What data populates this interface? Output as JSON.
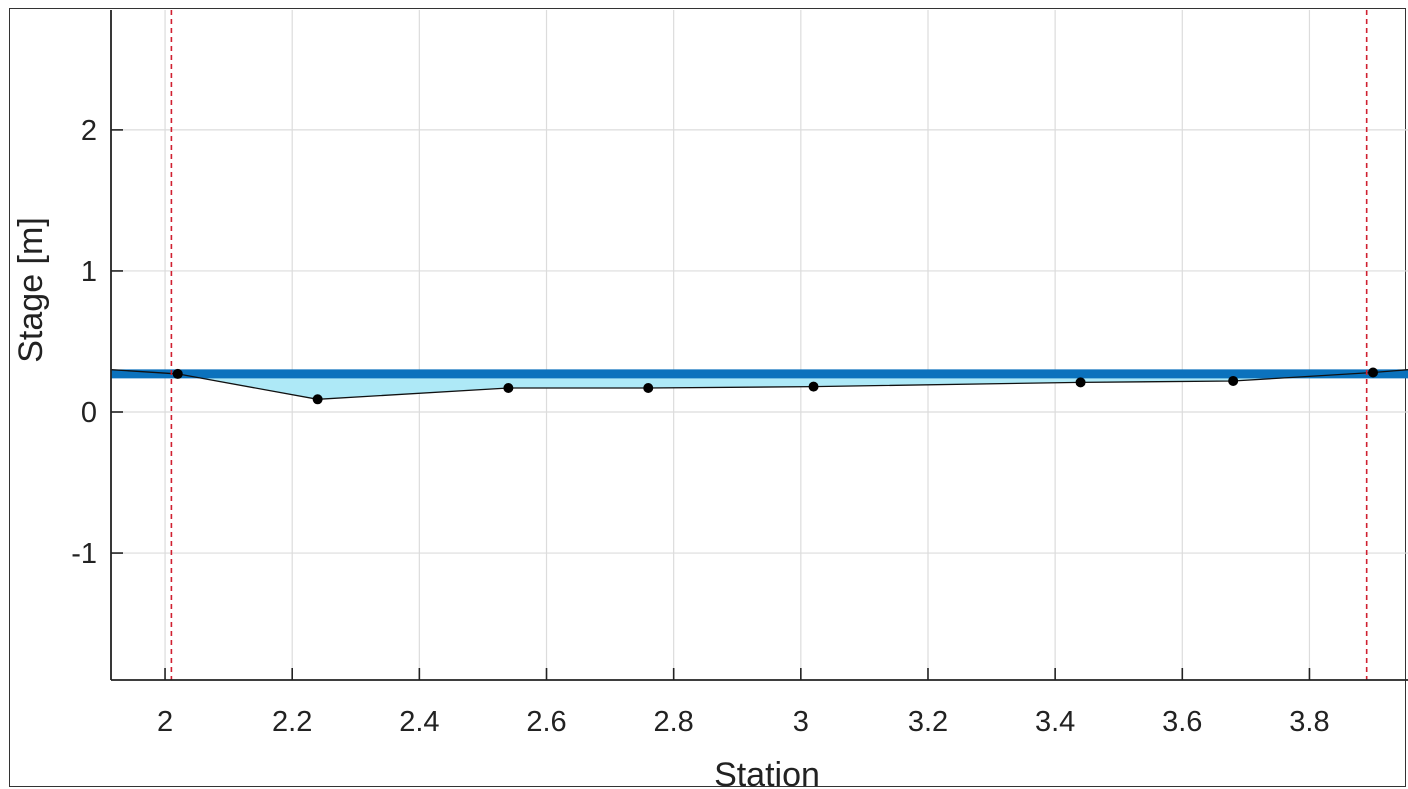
{
  "chart_data": {
    "type": "line",
    "title": "",
    "xlabel": "Station",
    "ylabel": "Stage   [m]",
    "xlim": [
      1.915,
      3.955
    ],
    "ylim": [
      -1.9,
      2.85
    ],
    "xticks": [
      2,
      2.2,
      2.4,
      2.6,
      2.8,
      3,
      3.2,
      3.4,
      3.6,
      3.8
    ],
    "xtick_labels": [
      "2",
      "2.2",
      "2.4",
      "2.6",
      "2.8",
      "3",
      "3.2",
      "3.4",
      "3.6",
      "3.8"
    ],
    "yticks": [
      -1,
      0,
      1,
      2
    ],
    "ytick_labels": [
      "-1",
      "0",
      "1",
      "2"
    ],
    "grid": true,
    "water_surface": {
      "stage": 0.27,
      "color": "#0b72bd"
    },
    "water_fill_color": "#aee9f7",
    "bank_lines": {
      "x": [
        2.01,
        3.89
      ],
      "color": "#d02030",
      "style": "dashed"
    },
    "series": [
      {
        "x": [
          1.915,
          2.02,
          2.24,
          2.54,
          2.76,
          3.02,
          3.44,
          3.68,
          3.9,
          3.955
        ],
        "y": [
          0.3,
          0.27,
          0.09,
          0.17,
          0.17,
          0.18,
          0.21,
          0.22,
          0.28,
          0.3
        ]
      }
    ],
    "points": {
      "x": [
        2.02,
        2.24,
        2.54,
        2.76,
        3.02,
        3.44,
        3.68,
        3.9
      ],
      "y": [
        0.27,
        0.09,
        0.17,
        0.17,
        0.18,
        0.21,
        0.22,
        0.28
      ]
    }
  }
}
